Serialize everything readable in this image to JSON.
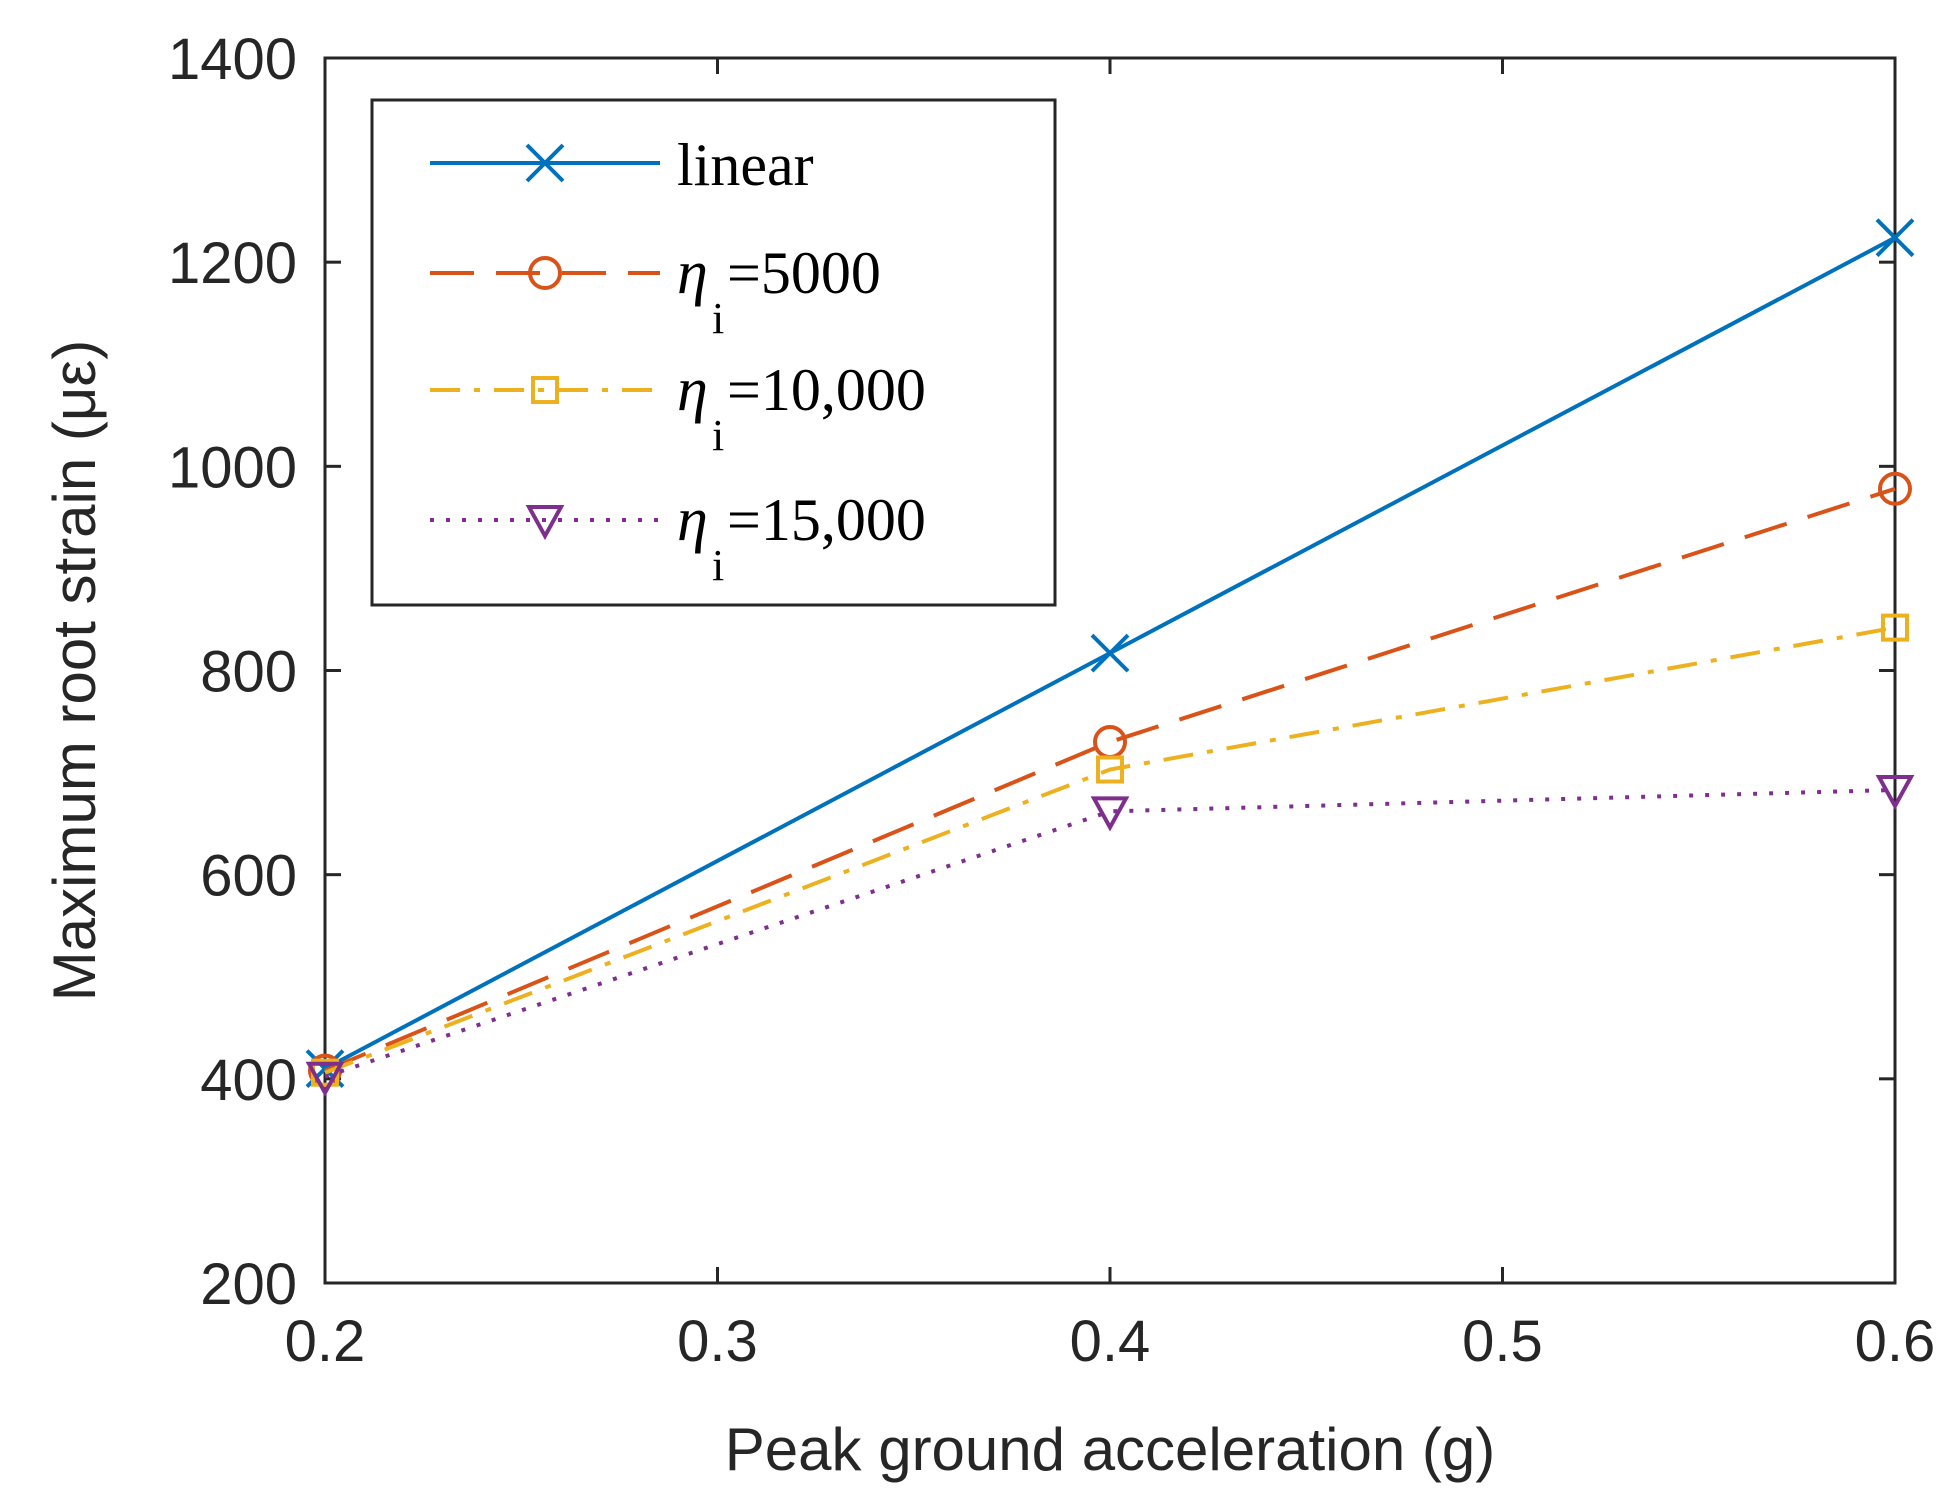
{
  "chart_data": {
    "type": "line",
    "title": "",
    "xlabel": "Peak ground acceleration (g)",
    "ylabel": "Maximum root strain (με)",
    "xlim": [
      0.2,
      0.6
    ],
    "ylim": [
      200,
      1400
    ],
    "xticks": [
      "0.2",
      "0.3",
      "0.4",
      "0.5",
      "0.6"
    ],
    "yticks": [
      "200",
      "400",
      "600",
      "800",
      "1000",
      "1200",
      "1400"
    ],
    "x": [
      0.2,
      0.4,
      0.6
    ],
    "grid": false,
    "legend_position": "top-left",
    "series": [
      {
        "name": "linear",
        "eta_symbol": "",
        "eta_sub": "",
        "eta_value": "linear",
        "values": [
          410,
          817,
          1224
        ],
        "color": "#0072BD",
        "dash": "solid",
        "marker": "x"
      },
      {
        "name": "ηi=5000",
        "eta_symbol": "η",
        "eta_sub": "i",
        "eta_value": "=5000",
        "values": [
          408,
          730,
          978
        ],
        "color": "#D95319",
        "dash": "dashed",
        "marker": "circle"
      },
      {
        "name": "ηi=10,000",
        "eta_symbol": "η",
        "eta_sub": "i",
        "eta_value": "=10,000",
        "values": [
          406,
          703,
          842
        ],
        "color": "#EDB120",
        "dash": "dashdot",
        "marker": "square"
      },
      {
        "name": "ηi=15,000",
        "eta_symbol": "η",
        "eta_sub": "i",
        "eta_value": "=15,000",
        "values": [
          402,
          662,
          683
        ],
        "color": "#7E2F8E",
        "dash": "dotted",
        "marker": "triangle-down"
      }
    ]
  }
}
